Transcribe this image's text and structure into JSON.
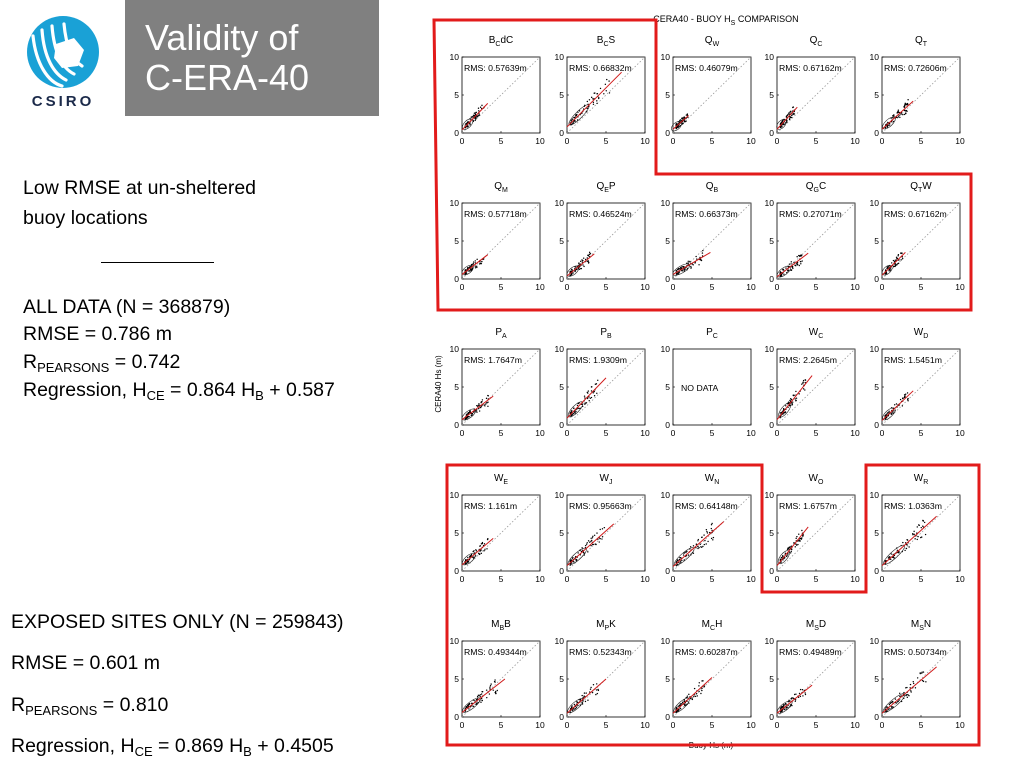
{
  "logo": {
    "text": "CSIRO",
    "color": "#1aa1d6"
  },
  "title": {
    "line1": "Validity of",
    "line2": "C-ERA-40"
  },
  "left": {
    "headline1": "Low RMSE at un-sheltered",
    "headline2": "buoy locations",
    "all_data": {
      "count": "ALL DATA (N = 368879)",
      "rmse": "RMSE = 0.786 m",
      "r_main": "R",
      "r_sub": "PEARSONS",
      "r_val": "= 0.742",
      "reg_a": "Regression, H",
      "reg_sub1": "CE",
      "reg_b": "= 0.864 H",
      "reg_sub2": "B",
      "reg_c": "+ 0.587"
    },
    "exposed": {
      "count": "EXPOSED SITES ONLY (N = 259843)",
      "rmse": "RMSE = 0.601 m",
      "r_main": "R",
      "r_sub": "PEARSONS",
      "r_val": "= 0.810",
      "reg_a": "Regression, H",
      "reg_sub1": "CE",
      "reg_b": "= 0.869 H",
      "reg_sub2": "B",
      "reg_c": "+ 0.4505"
    }
  },
  "figure": {
    "title_main": "CERA40 - BUOY H",
    "title_sub": "S",
    "title_tail": "COMPARISON",
    "ylabel": "CERA40 Hs (m)",
    "xlabel": "Buoy Hs (m)",
    "outline_color": "#e21b1b",
    "regression_color": "#d01a1a"
  },
  "chart_data": {
    "type": "scatter",
    "xlim": [
      0,
      10
    ],
    "ylim": [
      0,
      10
    ],
    "ticks": [
      "0",
      "5",
      "10"
    ],
    "grid": false,
    "reference_line": "y = x",
    "panels": [
      {
        "main": "B",
        "sub": "C",
        "tail": "dC",
        "rms": "RMS: 0.57639m",
        "x": [
          0,
          3.3
        ],
        "y": [
          0.4,
          3.9
        ]
      },
      {
        "main": "B",
        "sub": "C",
        "tail": "S",
        "rms": "RMS: 0.66832m",
        "x": [
          0,
          7
        ],
        "y": [
          0.8,
          8
        ]
      },
      {
        "main": "Q",
        "sub": "W",
        "tail": "",
        "rms": "RMS: 0.46079m",
        "x": [
          0,
          2
        ],
        "y": [
          0.5,
          2.3
        ]
      },
      {
        "main": "Q",
        "sub": "C",
        "tail": "",
        "rms": "RMS: 0.67162m",
        "x": [
          0,
          2.6
        ],
        "y": [
          0.5,
          3.4
        ]
      },
      {
        "main": "Q",
        "sub": "T",
        "tail": "",
        "rms": "RMS: 0.72606m",
        "x": [
          0,
          4
        ],
        "y": [
          0.5,
          4.2
        ]
      },
      {
        "main": "Q",
        "sub": "M",
        "tail": "",
        "rms": "RMS: 0.57718m",
        "x": [
          0,
          3.3
        ],
        "y": [
          0.6,
          3.2
        ]
      },
      {
        "main": "Q",
        "sub": "E",
        "tail": "P",
        "rms": "RMS: 0.46524m",
        "x": [
          0,
          3.5
        ],
        "y": [
          0.4,
          3.3
        ]
      },
      {
        "main": "Q",
        "sub": "B",
        "tail": "",
        "rms": "RMS: 0.66373m",
        "x": [
          0,
          4.8
        ],
        "y": [
          0.6,
          3.5
        ]
      },
      {
        "main": "Q",
        "sub": "G",
        "tail": "C",
        "rms": "RMS: 0.27071m",
        "x": [
          0,
          4
        ],
        "y": [
          0.3,
          3.4
        ]
      },
      {
        "main": "Q",
        "sub": "T",
        "tail": "W",
        "rms": "RMS: 0.67162m",
        "x": [
          0,
          3
        ],
        "y": [
          0.5,
          3.5
        ]
      },
      {
        "main": "P",
        "sub": "A",
        "tail": "",
        "rms": "RMS: 1.7647m",
        "x": [
          0,
          4
        ],
        "y": [
          0.7,
          3.8
        ]
      },
      {
        "main": "P",
        "sub": "B",
        "tail": "",
        "rms": "RMS: 1.9309m",
        "x": [
          0,
          5
        ],
        "y": [
          0.9,
          6.2
        ]
      },
      {
        "main": "P",
        "sub": "C",
        "tail": "",
        "rms": "",
        "no_data": "NO DATA"
      },
      {
        "main": "W",
        "sub": "C",
        "tail": "",
        "rms": "RMS: 2.2645m",
        "x": [
          0,
          4.5
        ],
        "y": [
          0.7,
          6.5
        ]
      },
      {
        "main": "W",
        "sub": "D",
        "tail": "",
        "rms": "RMS: 1.5451m",
        "x": [
          0,
          4
        ],
        "y": [
          0.6,
          4.5
        ]
      },
      {
        "main": "W",
        "sub": "E",
        "tail": "",
        "rms": "RMS: 1.161m",
        "x": [
          0,
          4
        ],
        "y": [
          0.8,
          4.3
        ]
      },
      {
        "main": "W",
        "sub": "J",
        "tail": "",
        "rms": "RMS: 0.95663m",
        "x": [
          0,
          6
        ],
        "y": [
          0.7,
          6.2
        ]
      },
      {
        "main": "W",
        "sub": "N",
        "tail": "",
        "rms": "RMS: 0.64148m",
        "x": [
          0,
          6.5
        ],
        "y": [
          0.6,
          6.5
        ]
      },
      {
        "main": "W",
        "sub": "O",
        "tail": "",
        "rms": "RMS: 1.6757m",
        "x": [
          0,
          4
        ],
        "y": [
          0.7,
          5.8
        ]
      },
      {
        "main": "W",
        "sub": "R",
        "tail": "",
        "rms": "RMS: 1.0363m",
        "x": [
          0,
          7
        ],
        "y": [
          0.7,
          7.2
        ]
      },
      {
        "main": "M",
        "sub": "B",
        "tail": "B",
        "rms": "RMS: 0.49344m",
        "x": [
          0,
          5.5
        ],
        "y": [
          0.6,
          5
        ]
      },
      {
        "main": "M",
        "sub": "P",
        "tail": "K",
        "rms": "RMS: 0.52343m",
        "x": [
          0,
          5
        ],
        "y": [
          0.5,
          5
        ]
      },
      {
        "main": "M",
        "sub": "C",
        "tail": "H",
        "rms": "RMS: 0.60287m",
        "x": [
          0,
          5
        ],
        "y": [
          0.5,
          5.2
        ]
      },
      {
        "main": "M",
        "sub": "S",
        "tail": "D",
        "rms": "RMS: 0.49489m",
        "x": [
          0,
          4.5
        ],
        "y": [
          0.5,
          4.2
        ]
      },
      {
        "main": "M",
        "sub": "S",
        "tail": "N",
        "rms": "RMS: 0.50734m",
        "x": [
          0,
          7
        ],
        "y": [
          0.5,
          6.6
        ]
      }
    ]
  }
}
